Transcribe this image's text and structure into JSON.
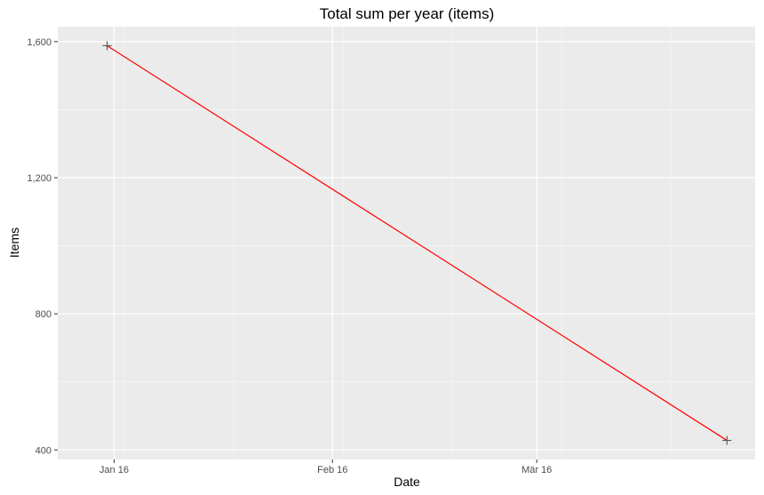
{
  "chart_data": {
    "type": "line",
    "title": "Total sum per year (items)",
    "xlabel": "Date",
    "ylabel": "Items",
    "x_ticks": [
      {
        "label": "Jan 16",
        "date": "2016-01-16"
      },
      {
        "label": "Feb 16",
        "date": "2016-02-16"
      },
      {
        "label": "Mär 16",
        "date": "2016-03-16"
      }
    ],
    "xlim": [
      "2016-01-08",
      "2016-04-16"
    ],
    "y_ticks": [
      {
        "label": "400",
        "value": 400
      },
      {
        "label": "800",
        "value": 800
      },
      {
        "label": "1,200",
        "value": 1200
      },
      {
        "label": "1,600",
        "value": 1600
      }
    ],
    "ylim": [
      372,
      1644
    ],
    "grid": true,
    "series": [
      {
        "color": "#ff0000",
        "marker": "plus",
        "marker_color": "#555555",
        "points": [
          {
            "x": "2016-01-15",
            "y": 1588
          },
          {
            "x": "2016-04-12",
            "y": 428
          }
        ]
      }
    ]
  }
}
